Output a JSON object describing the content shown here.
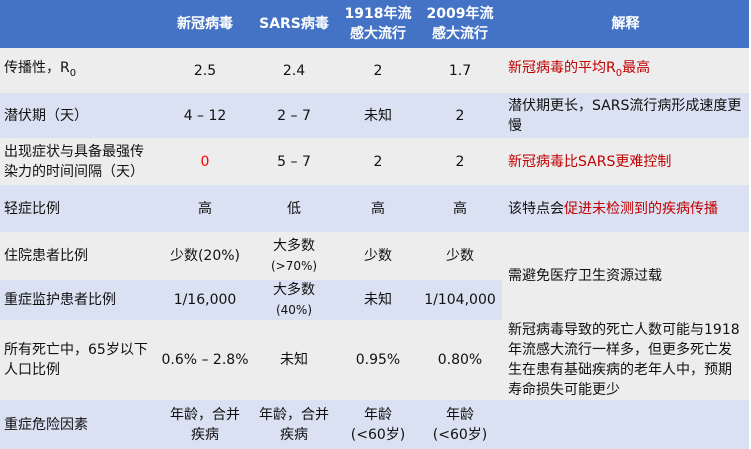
{
  "header": {
    "empty": "",
    "col1": "新冠病毒",
    "col2": "SARS病毒",
    "col3": "1918年流感大流行",
    "col4": "2009年流感大流行",
    "col5": "解释"
  },
  "rows": [
    {
      "label": "传播性，R",
      "label_sub": "0",
      "v1": "2.5",
      "v2": "2.4",
      "v3": "2",
      "v4": "1.7",
      "expl_a": "新冠病毒的平均R",
      "expl_sub": "0",
      "expl_b": "最高"
    },
    {
      "label": "潜伏期（天）",
      "v1": "4 – 12",
      "v2": "2 – 7",
      "v3": "未知",
      "v4": "2",
      "expl": "潜伏期更长，SARS流行病形成速度更慢"
    },
    {
      "label": "出现症状与具备最强传染力的时间间隔（天）",
      "v1": "0",
      "v2": "5 – 7",
      "v3": "2",
      "v4": "2",
      "expl": "新冠病毒比SARS更难控制"
    },
    {
      "label": "轻症比例",
      "v1": "高",
      "v2": "低",
      "v3": "高",
      "v4": "高",
      "expl_a": "该特点会",
      "expl_b": "促进未检测到的疾病传播"
    },
    {
      "label": "住院患者比例",
      "v1": "少数(20%)",
      "v2": "大多数",
      "v2_note": "(>70%)",
      "v3": "少数",
      "v4": "少数",
      "expl": "需避免医疗卫生资源过载"
    },
    {
      "label": "重症监护患者比例",
      "v1": "1/16,000",
      "v2": "大多数",
      "v2_note": "(40%)",
      "v3": "未知",
      "v4": "1/104,000"
    },
    {
      "label": "所有死亡中，65岁以下人口比例",
      "v1": "0.6% – 2.8%",
      "v2": "未知",
      "v3": "0.95%",
      "v4": "0.80%",
      "expl": "新冠病毒导致的死亡人数可能与1918年流感大流行一样多，但更多死亡发生在患有基础疾病的老年人中，预期寿命损失可能更少"
    },
    {
      "label": "重症危险因素",
      "v1": "年龄，合并疾病",
      "v2": "年龄，合并疾病",
      "v3": "年龄",
      "v3_note": "(<60岁)",
      "v4": "年龄",
      "v4_note": "(<60岁)",
      "expl": ""
    }
  ],
  "colors": {
    "header": "#4472C4",
    "row_gray": "#EDEDED",
    "row_blue": "#D9E1F2",
    "highlight_red": "#C00000"
  }
}
